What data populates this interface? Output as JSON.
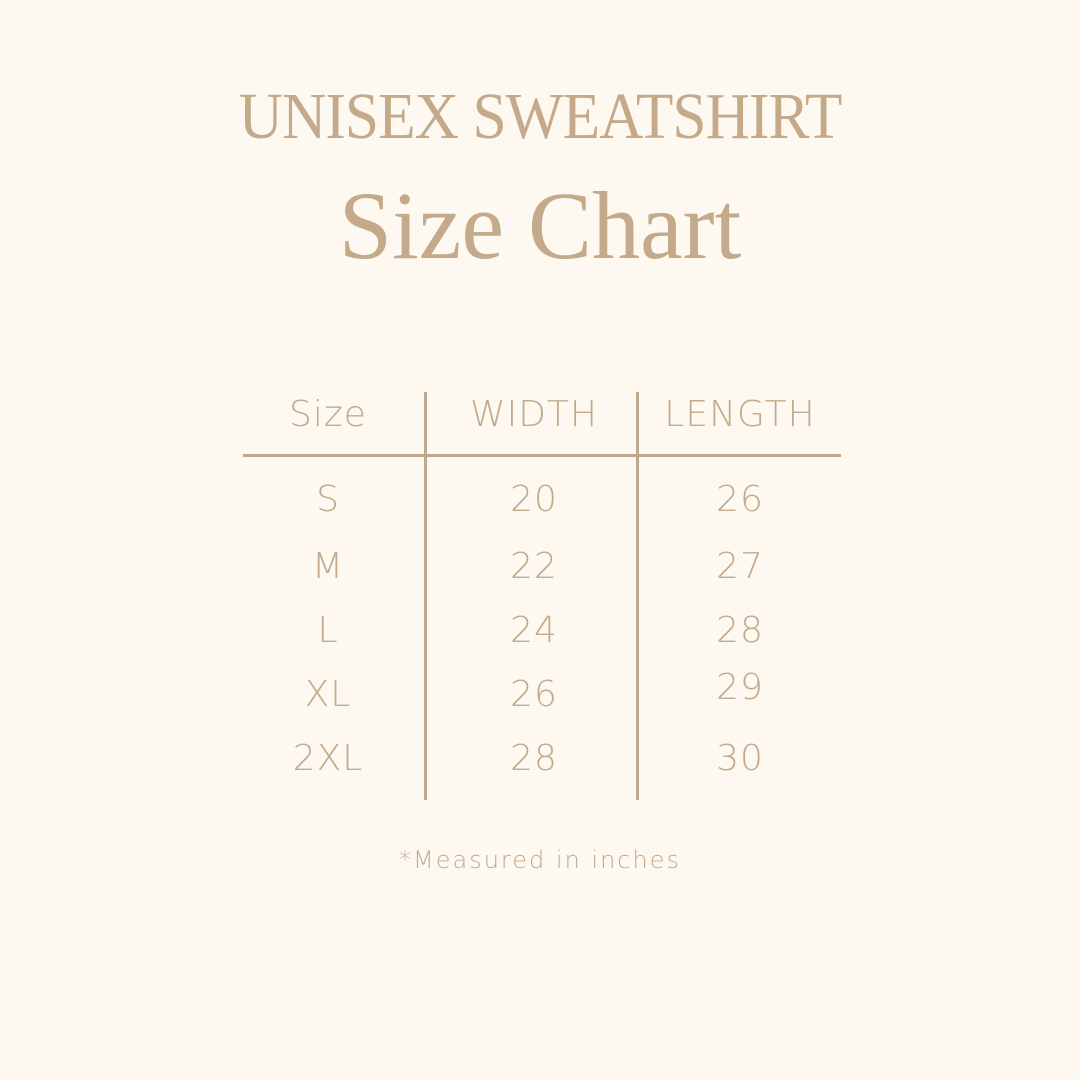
{
  "title": {
    "line1": "UNISEX SWEATSHIRT",
    "line2": "Size Chart"
  },
  "table": {
    "headers": [
      "Size",
      "WIDTH",
      "LENGTH"
    ],
    "rows": [
      [
        "S",
        "20",
        "26"
      ],
      [
        "M",
        "22",
        "27"
      ],
      [
        "L",
        "24",
        "28"
      ],
      [
        "XL",
        "26",
        "29"
      ],
      [
        "2XL",
        "28",
        "30"
      ]
    ]
  },
  "footnote": "*Measured in inches",
  "colors": {
    "background": "#fdf8f0",
    "text": "#c4a98a",
    "rule": "#bfa890"
  }
}
